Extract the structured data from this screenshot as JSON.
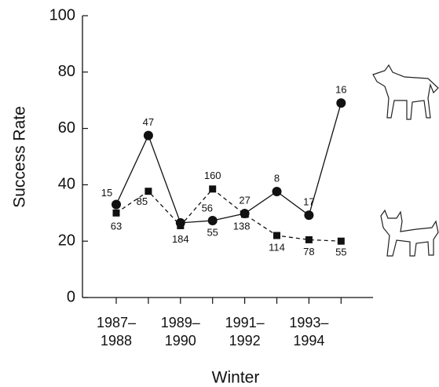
{
  "chart_data": {
    "type": "line",
    "x_label": "Winter",
    "y_label": "Success Rate",
    "categories": [
      "1987–1988",
      null,
      "1989–1990",
      null,
      "1991–1992",
      null,
      "1993–1994",
      null
    ],
    "ylim": [
      0,
      100
    ],
    "yticks": [
      0,
      20,
      40,
      60,
      80,
      100
    ],
    "series": [
      {
        "name": "Wolf",
        "color": "#111111",
        "marker": "circle",
        "dash": false,
        "values": [
          33,
          57.5,
          26.5,
          27.3,
          29.8,
          37.6,
          29.2,
          69
        ],
        "sample_sizes": [
          15,
          47,
          56,
          55,
          27,
          8,
          17,
          16
        ]
      },
      {
        "name": "Lynx",
        "color": "#111111",
        "marker": "square",
        "dash": true,
        "values": [
          30,
          37.7,
          25.5,
          38.5,
          29.5,
          22,
          20.5,
          20
        ],
        "sample_sizes": [
          63,
          85,
          184,
          160,
          138,
          114,
          78,
          55
        ]
      }
    ]
  }
}
